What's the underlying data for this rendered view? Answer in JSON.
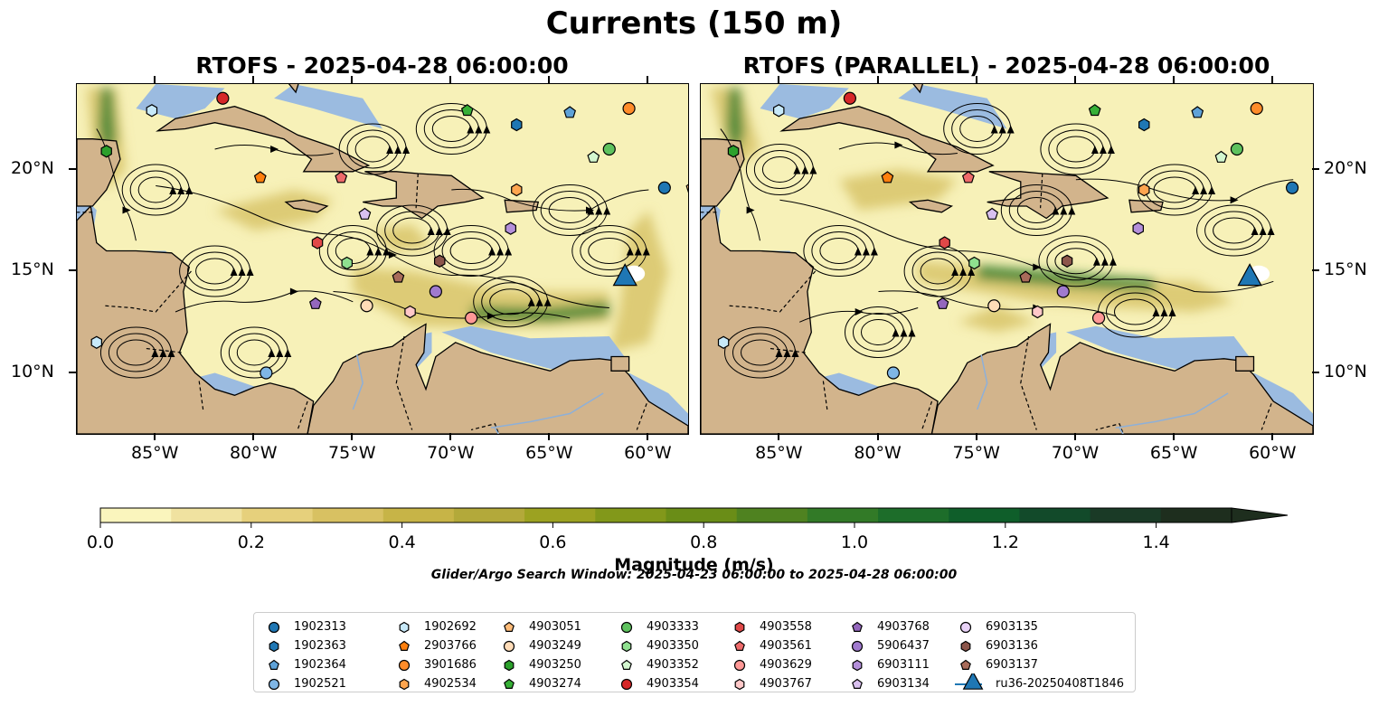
{
  "title": "Currents (150 m)",
  "panels": [
    {
      "id": "left",
      "title": "RTOFS - 2025-04-28 06:00:00"
    },
    {
      "id": "right",
      "title": "RTOFS (PARALLEL) - 2025-04-28 06:00:00"
    }
  ],
  "map_extent": {
    "lon": [
      -89.0,
      -58.0
    ],
    "lat": [
      7.0,
      24.2
    ]
  },
  "lon_ticks": [
    "85°W",
    "80°W",
    "75°W",
    "70°W",
    "65°W",
    "60°W"
  ],
  "lat_ticks": [
    "20°N",
    "15°N",
    "10°N"
  ],
  "colors": {
    "land": "#d2b48c",
    "ocean": "#9bbbe0",
    "current_low": "#f7f1b8",
    "current_mid": "#d8c46a",
    "current_high": "#2a7a2a"
  },
  "colorbar": {
    "label": "Magnitude (m/s)",
    "ticks": [
      "0.0",
      "0.2",
      "0.4",
      "0.6",
      "0.8",
      "1.0",
      "1.2",
      "1.4"
    ],
    "range": [
      0.0,
      1.5
    ],
    "colors": [
      "#faf5bd",
      "#f0e2a0",
      "#e6d07c",
      "#d8c162",
      "#c7b447",
      "#b3a93a",
      "#9ca221",
      "#82981a",
      "#6a8d17",
      "#4f8220",
      "#327a27",
      "#1d6d2a",
      "#0f5e2a",
      "#124a2a",
      "#1a3a26",
      "#1e2e1e"
    ]
  },
  "search_window": "Glider/Argo Search Window: 2025-04-23 06:00:00 to 2025-04-28 06:00:00",
  "legend": [
    {
      "label": "1902313",
      "marker": "circle",
      "color": "#1f77b4"
    },
    {
      "label": "1902363",
      "marker": "hexagon",
      "color": "#1f77b4"
    },
    {
      "label": "1902364",
      "marker": "pentagon",
      "color": "#5fa2d8"
    },
    {
      "label": "1902521",
      "marker": "circle",
      "color": "#7fb6e6"
    },
    {
      "label": "1902692",
      "marker": "hexagon",
      "color": "#c7e9f9"
    },
    {
      "label": "2903766",
      "marker": "pentagon",
      "color": "#ff7f0e"
    },
    {
      "label": "3901686",
      "marker": "circle",
      "color": "#ff8c2a"
    },
    {
      "label": "4902534",
      "marker": "hexagon",
      "color": "#ffa54f"
    },
    {
      "label": "4903051",
      "marker": "pentagon",
      "color": "#ffbb78"
    },
    {
      "label": "4903249",
      "marker": "circle",
      "color": "#ffdcb8"
    },
    {
      "label": "4903250",
      "marker": "hexagon",
      "color": "#2ca02c"
    },
    {
      "label": "4903274",
      "marker": "pentagon",
      "color": "#37b037"
    },
    {
      "label": "4903333",
      "marker": "circle",
      "color": "#5ec25e"
    },
    {
      "label": "4903350",
      "marker": "hexagon",
      "color": "#8fe08f"
    },
    {
      "label": "4903352",
      "marker": "pentagon",
      "color": "#d3f7cf"
    },
    {
      "label": "4903354",
      "marker": "circle",
      "color": "#d62728"
    },
    {
      "label": "4903558",
      "marker": "hexagon",
      "color": "#e04848"
    },
    {
      "label": "4903561",
      "marker": "pentagon",
      "color": "#ee6a6a"
    },
    {
      "label": "4903629",
      "marker": "circle",
      "color": "#ff9896"
    },
    {
      "label": "4903767",
      "marker": "hexagon",
      "color": "#ffc8c8"
    },
    {
      "label": "4903768",
      "marker": "pentagon",
      "color": "#9467bd"
    },
    {
      "label": "5906437",
      "marker": "circle",
      "color": "#a07ace"
    },
    {
      "label": "6903111",
      "marker": "hexagon",
      "color": "#b48fda"
    },
    {
      "label": "6903134",
      "marker": "pentagon",
      "color": "#d9c0ef"
    },
    {
      "label": "6903135",
      "marker": "circle",
      "color": "#e8d2f7"
    },
    {
      "label": "6903136",
      "marker": "hexagon",
      "color": "#8c564b"
    },
    {
      "label": "6903137",
      "marker": "pentagon",
      "color": "#a86b5a"
    },
    {
      "label": "ru36-20250408T1846",
      "marker": "triangle",
      "color": "#1f77b4"
    }
  ],
  "floats": [
    {
      "id": "1902313",
      "lon": -59.2,
      "lat": 19.1
    },
    {
      "id": "1902363",
      "lon": -66.7,
      "lat": 22.2
    },
    {
      "id": "1902364",
      "lon": -64.0,
      "lat": 22.8
    },
    {
      "id": "1902521",
      "lon": -79.4,
      "lat": 10.0
    },
    {
      "id": "1902692",
      "lon": -85.2,
      "lat": 22.9
    },
    {
      "id": "1902692",
      "lon": -88.0,
      "lat": 11.5
    },
    {
      "id": "2903766",
      "lon": -79.7,
      "lat": 19.6
    },
    {
      "id": "3901686",
      "lon": -61.0,
      "lat": 23.0
    },
    {
      "id": "4902534",
      "lon": -66.7,
      "lat": 19.0
    },
    {
      "id": "4903051",
      "lon": -57.8,
      "lat": 19.1
    },
    {
      "id": "4903249",
      "lon": -74.3,
      "lat": 13.3
    },
    {
      "id": "4903250",
      "lon": -87.5,
      "lat": 20.9
    },
    {
      "id": "4903274",
      "lon": -69.2,
      "lat": 22.9
    },
    {
      "id": "4903333",
      "lon": -62.0,
      "lat": 21.0
    },
    {
      "id": "4903350",
      "lon": -75.3,
      "lat": 15.4
    },
    {
      "id": "4903352",
      "lon": -62.8,
      "lat": 20.6
    },
    {
      "id": "4903354",
      "lon": -81.6,
      "lat": 23.5
    },
    {
      "id": "4903558",
      "lon": -76.8,
      "lat": 16.4
    },
    {
      "id": "4903561",
      "lon": -75.6,
      "lat": 19.6
    },
    {
      "id": "4903629",
      "lon": -69.0,
      "lat": 12.7
    },
    {
      "id": "4903767",
      "lon": -72.1,
      "lat": 13.0
    },
    {
      "id": "4903768",
      "lon": -76.9,
      "lat": 13.4
    },
    {
      "id": "5906437",
      "lon": -70.8,
      "lat": 14.0
    },
    {
      "id": "6903111",
      "lon": -67.0,
      "lat": 17.1
    },
    {
      "id": "6903134",
      "lon": -74.4,
      "lat": 17.8
    },
    {
      "id": "6903136",
      "lon": -70.6,
      "lat": 15.5
    },
    {
      "id": "6903137",
      "lon": -72.7,
      "lat": 14.7
    }
  ],
  "glider": {
    "id": "ru36-20250408T1846",
    "lon": -61.2,
    "lat": 14.7
  }
}
